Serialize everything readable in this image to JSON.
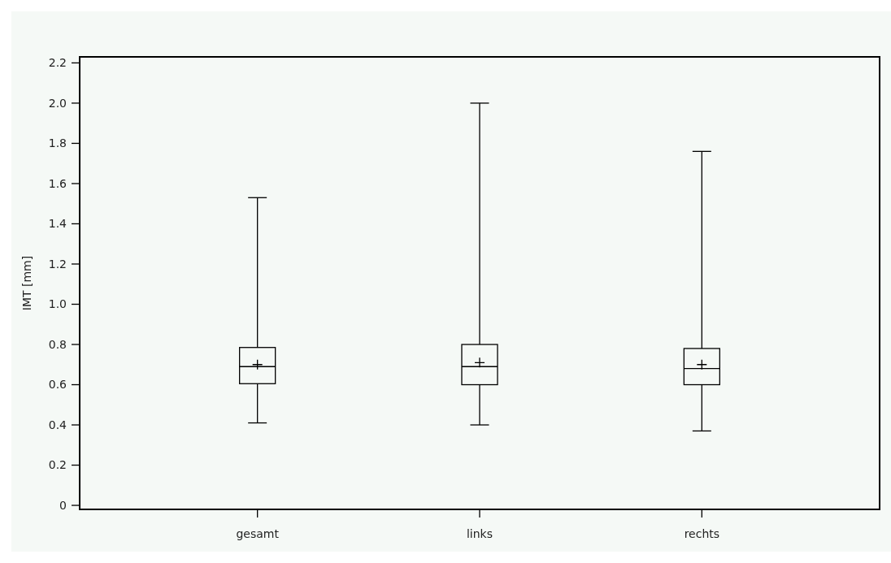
{
  "chart_data": {
    "type": "box",
    "ylabel": "IMT [mm]",
    "categories": [
      "gesamt",
      "links",
      "rechts"
    ],
    "boxes": [
      {
        "low": 0.41,
        "q1": 0.605,
        "median": 0.69,
        "q3": 0.785,
        "high": 1.53,
        "mean": 0.7
      },
      {
        "low": 0.4,
        "q1": 0.6,
        "median": 0.69,
        "q3": 0.8,
        "high": 2.0,
        "mean": 0.71
      },
      {
        "low": 0.37,
        "q1": 0.6,
        "median": 0.68,
        "q3": 0.78,
        "high": 1.76,
        "mean": 0.7
      }
    ],
    "color": "#000000",
    "ylim": [
      -0.02,
      2.23
    ],
    "yticks": [
      {
        "value": 0,
        "label": "0"
      },
      0.2,
      0.4,
      0.6,
      0.8,
      {
        "value": 1,
        "label": "1.0"
      },
      1.2,
      1.4,
      1.6,
      1.8,
      {
        "value": 2,
        "label": "2.0"
      },
      2.2
    ],
    "grid": false
  }
}
